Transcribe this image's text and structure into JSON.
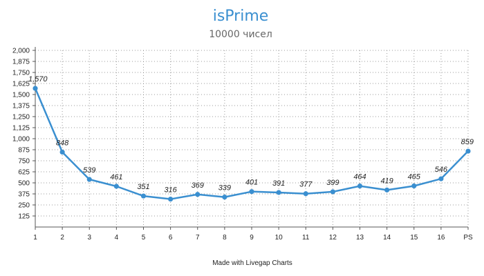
{
  "colors": {
    "accent": "#3a8fd0",
    "subtitle": "#666666",
    "grid": "#999999",
    "axis": "#555555"
  },
  "credit": "Made with Livegap Charts",
  "chart_data": {
    "type": "line",
    "title": "isPrime",
    "subtitle": "10000 чисел",
    "xlabel": "",
    "ylabel": "",
    "categories": [
      "1",
      "2",
      "3",
      "4",
      "5",
      "6",
      "7",
      "8",
      "9",
      "10",
      "11",
      "12",
      "13",
      "14",
      "15",
      "16",
      "PS"
    ],
    "series": [
      {
        "values": [
          1570,
          848,
          539,
          461,
          351,
          316,
          369,
          339,
          401,
          391,
          377,
          399,
          464,
          419,
          465,
          546,
          859
        ],
        "labels": [
          "1,570",
          "848",
          "539",
          "461",
          "351",
          "316",
          "369",
          "339",
          "401",
          "391",
          "377",
          "399",
          "464",
          "419",
          "465",
          "546",
          "859"
        ]
      }
    ],
    "ylim": [
      0,
      2000
    ],
    "yticks": [
      125,
      250,
      375,
      500,
      625,
      750,
      875,
      1000,
      1125,
      1250,
      1375,
      1500,
      1625,
      1750,
      1875,
      2000
    ],
    "ytick_labels": [
      "125",
      "250",
      "375",
      "500",
      "625",
      "750",
      "875",
      "1,000",
      "1,125",
      "1,250",
      "1,375",
      "1,500",
      "1,625",
      "1,750",
      "1,875",
      "2,000"
    ],
    "grid": true,
    "legend": "none"
  }
}
